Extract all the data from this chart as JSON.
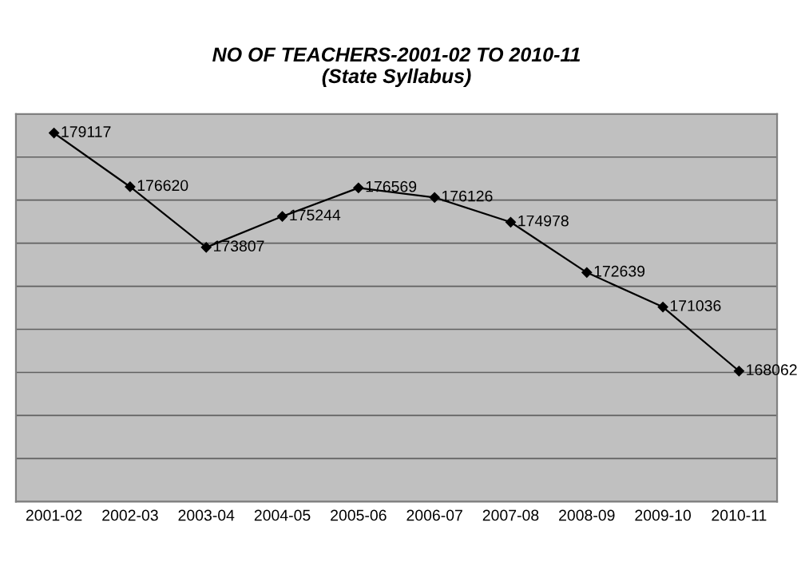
{
  "chart_data": {
    "type": "line",
    "title": "NO OF TEACHERS-2001-02 TO 2010-11\n(State Syllabus)",
    "categories": [
      "2001-02",
      "2002-03",
      "2003-04",
      "2004-05",
      "2005-06",
      "2006-07",
      "2007-08",
      "2008-09",
      "2009-10",
      "2010-11"
    ],
    "series": [
      {
        "color": "#000000",
        "values": [
          179117,
          176620,
          173807,
          175244,
          176569,
          176126,
          174978,
          172639,
          171036,
          168062
        ]
      }
    ],
    "ylim": [
      162000,
      180000
    ],
    "yticks": [
      {
        "value": 162000,
        "label": null
      },
      {
        "value": 164000,
        "label": null
      },
      {
        "value": 166000,
        "label": null
      },
      {
        "value": 168000,
        "label": null
      },
      {
        "value": 170000,
        "label": null
      },
      {
        "value": 172000,
        "label": null
      },
      {
        "value": 174000,
        "label": null
      },
      {
        "value": 176000,
        "label": null
      },
      {
        "value": 178000,
        "label": null
      },
      {
        "value": 180000,
        "label": null
      }
    ],
    "grid": "y",
    "tick_labels": "x",
    "data_labels": true,
    "marker": "diamond",
    "line_style": "solid"
  }
}
